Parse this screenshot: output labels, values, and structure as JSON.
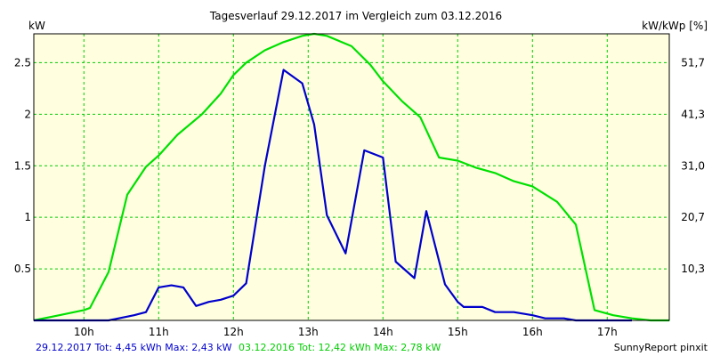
{
  "chart_data": {
    "type": "line",
    "title": "Tagesverlauf 29.12.2017 im Vergleich zum 03.12.2016",
    "ylabel_left": "kW",
    "ylabel_right": "kW/kWp [%]",
    "xlabel": "",
    "x_ticks": [
      "10h",
      "11h",
      "12h",
      "13h",
      "14h",
      "15h",
      "16h",
      "17h"
    ],
    "y_ticks_left": [
      "0.5",
      "1",
      "1.5",
      "2",
      "2.5"
    ],
    "y_ticks_left_values": [
      0.5,
      1,
      1.5,
      2,
      2.5
    ],
    "y_ticks_right": [
      "10,3",
      "20,7",
      "31,0",
      "41,3",
      "51,7"
    ],
    "y_ticks_right_values": [
      0.5,
      1,
      1.5,
      2,
      2.5
    ],
    "ylim": [
      0,
      2.78
    ],
    "xlim": [
      9.33,
      17.83
    ],
    "grid": true,
    "series": [
      {
        "color": "#00e000",
        "x": [
          9.33,
          9.67,
          10.0,
          10.08,
          10.33,
          10.58,
          10.83,
          11.0,
          11.25,
          11.58,
          11.83,
          12.0,
          12.17,
          12.42,
          12.67,
          12.92,
          13.08,
          13.25,
          13.58,
          13.83,
          14.0,
          14.25,
          14.5,
          14.75,
          15.0,
          15.25,
          15.5,
          15.75,
          16.0,
          16.33,
          16.58,
          16.83,
          17.08,
          17.33,
          17.58,
          17.83
        ],
        "y": [
          0.0,
          0.05,
          0.1,
          0.12,
          0.47,
          1.22,
          1.49,
          1.6,
          1.8,
          2.0,
          2.2,
          2.38,
          2.5,
          2.62,
          2.7,
          2.76,
          2.78,
          2.76,
          2.66,
          2.48,
          2.32,
          2.13,
          1.97,
          1.58,
          1.55,
          1.48,
          1.43,
          1.35,
          1.3,
          1.15,
          0.93,
          0.1,
          0.05,
          0.02,
          0.0,
          0.0
        ],
        "name": ""
      },
      {
        "color": "#0000cc",
        "x": [
          9.33,
          10.08,
          10.33,
          10.67,
          10.83,
          11.0,
          11.17,
          11.33,
          11.5,
          11.67,
          11.83,
          12.0,
          12.17,
          12.42,
          12.67,
          12.92,
          13.08,
          13.25,
          13.5,
          13.75,
          14.0,
          14.17,
          14.42,
          14.58,
          14.83,
          15.0,
          15.08,
          15.33,
          15.5,
          15.75,
          16.0,
          16.17,
          16.42,
          16.58,
          16.83,
          17.08,
          17.33
        ],
        "y": [
          0.0,
          0.0,
          0.0,
          0.05,
          0.08,
          0.32,
          0.34,
          0.32,
          0.14,
          0.18,
          0.2,
          0.24,
          0.36,
          1.5,
          2.43,
          2.3,
          1.9,
          1.02,
          0.65,
          1.65,
          1.58,
          0.57,
          0.41,
          1.06,
          0.35,
          0.18,
          0.13,
          0.13,
          0.08,
          0.08,
          0.05,
          0.02,
          0.02,
          0.0,
          0.0,
          0.0,
          0.0
        ],
        "name": ""
      }
    ]
  },
  "footer": {
    "blue_text": "29.12.2017 Tot: 4,45 kWh Max: 2,43 kW",
    "green_text": "03.12.2016 Tot: 12,42 kWh Max: 2,78 kW",
    "credit": "SunnyReport pinxit"
  },
  "colors": {
    "background": "#ffffe0",
    "grid": "#00cc00",
    "blue_series": "#0000cc",
    "green_series": "#00e000"
  }
}
